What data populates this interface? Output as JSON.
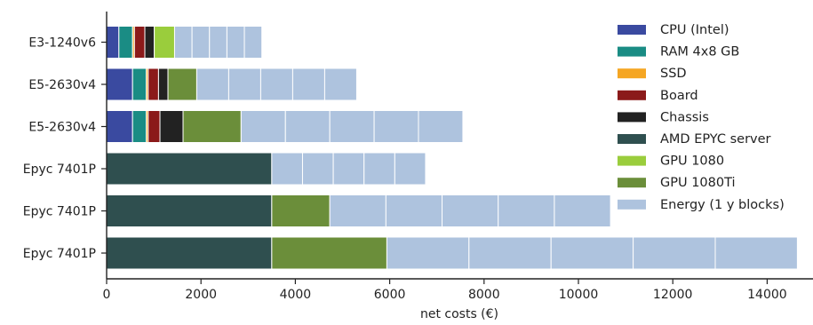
{
  "chart_data": {
    "type": "bar",
    "orientation": "horizontal",
    "stacked": true,
    "title": "",
    "xlabel": "net costs (€)",
    "ylabel": "",
    "xlim": [
      0,
      15000
    ],
    "xticks": [
      0,
      2000,
      4000,
      6000,
      8000,
      10000,
      12000,
      14000
    ],
    "grid": false,
    "legend_position": "top-right",
    "categories": [
      "E3-1240v6",
      "E5-2630v4",
      "E5-2630v4",
      "Epyc 7401P",
      "Epyc 7401P",
      "Epyc 7401P"
    ],
    "series": [
      {
        "name": "CPU (Intel)",
        "color": "#3a4aa0",
        "values": [
          260,
          550,
          550,
          0,
          0,
          0
        ]
      },
      {
        "name": "RAM 4x8 GB",
        "color": "#1a8c84",
        "values": [
          290,
          290,
          290,
          0,
          0,
          0
        ]
      },
      {
        "name": "SSD",
        "color": "#f5a623",
        "values": [
          40,
          40,
          40,
          0,
          0,
          0
        ]
      },
      {
        "name": "Board",
        "color": "#8b1a1a",
        "values": [
          220,
          220,
          250,
          0,
          0,
          0
        ]
      },
      {
        "name": "Chassis",
        "color": "#222222",
        "values": [
          200,
          200,
          490,
          0,
          0,
          0
        ]
      },
      {
        "name": "AMD EPYC server",
        "color": "#2f4f4f",
        "values": [
          0,
          0,
          0,
          3500,
          3500,
          3500
        ]
      },
      {
        "name": "GPU 1080",
        "color": "#9acd3c",
        "values": [
          430,
          0,
          0,
          0,
          0,
          0
        ]
      },
      {
        "name": "GPU 1080Ti",
        "color": "#6b8e3a",
        "values": [
          0,
          610,
          1230,
          0,
          1230,
          2440
        ]
      },
      {
        "name": "Energy (1 y blocks)",
        "color": "#aec3de",
        "values": [
          1850,
          3390,
          4700,
          3260,
          5950,
          8700
        ],
        "block_counts": [
          5,
          5,
          5,
          5,
          5,
          5
        ]
      }
    ]
  }
}
